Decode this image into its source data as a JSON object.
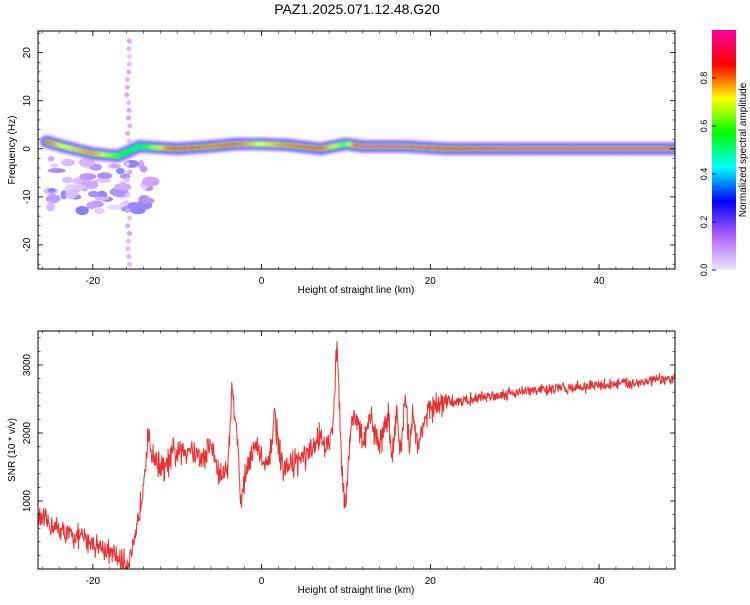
{
  "page_title": "PAZ1.2025.071.12.48.G20",
  "chart_data": [
    {
      "type": "heatmap",
      "title": "PAZ1.2025.071.12.48.G20",
      "xlabel": "Height of straight line (km)",
      "ylabel": "Frequency (Hz)",
      "xlim": [
        -26.5,
        49
      ],
      "ylim": [
        -25,
        24.5
      ],
      "x_ticks": [
        -20,
        0,
        20,
        40
      ],
      "y_ticks": [
        -20,
        -10,
        0,
        10,
        20
      ],
      "colorbar": {
        "label": "Normalized spectral amplitude",
        "range": [
          0.0,
          1.0
        ],
        "ticks": [
          0.0,
          0.2,
          0.4,
          0.6,
          0.8
        ],
        "colors": [
          "#e8e8ff",
          "#b060ff",
          "#0000ff",
          "#00ffff",
          "#00ff00",
          "#ffff00",
          "#ff0000",
          "#ff00a0"
        ]
      },
      "ridge": [
        {
          "x": -25.5,
          "freq": 1.5,
          "amp": 0.85
        },
        {
          "x": -23.5,
          "freq": 0.5,
          "amp": 0.7
        },
        {
          "x": -20,
          "freq": -1.0,
          "amp": 0.8
        },
        {
          "x": -17,
          "freq": -1.5,
          "amp": 0.6
        },
        {
          "x": -14.5,
          "freq": 0.5,
          "amp": 0.5
        },
        {
          "x": -10,
          "freq": 0.0,
          "amp": 0.9
        },
        {
          "x": -6,
          "freq": 0.5,
          "amp": 0.8
        },
        {
          "x": -3,
          "freq": 1.0,
          "amp": 0.85
        },
        {
          "x": 0,
          "freq": 1.0,
          "amp": 0.7
        },
        {
          "x": 3,
          "freq": 0.8,
          "amp": 0.8
        },
        {
          "x": 7,
          "freq": 0.0,
          "amp": 0.85
        },
        {
          "x": 10,
          "freq": 1.0,
          "amp": 0.6
        },
        {
          "x": 12,
          "freq": 0.5,
          "amp": 1.0
        },
        {
          "x": 17,
          "freq": 0.5,
          "amp": 1.0
        },
        {
          "x": 22,
          "freq": 0.0,
          "amp": 0.9
        },
        {
          "x": 30,
          "freq": 0.0,
          "amp": 1.0
        },
        {
          "x": 40,
          "freq": 0.0,
          "amp": 1.0
        },
        {
          "x": 49,
          "freq": 0.0,
          "amp": 1.0
        }
      ]
    },
    {
      "type": "line",
      "xlabel": "Height of straight line (km)",
      "ylabel": "SNR (10 * v/v)",
      "xlim": [
        -26.5,
        49
      ],
      "ylim": [
        0,
        3500
      ],
      "x_ticks": [
        -20,
        0,
        20,
        40
      ],
      "y_ticks": [
        1000,
        2000,
        3000
      ],
      "line_color": "#e83030",
      "series": [
        {
          "x": [
            -26.5,
            -25,
            -23,
            -21,
            -19,
            -17,
            -16,
            -15,
            -14.2,
            -13.5,
            -12.5,
            -11.5,
            -10.5,
            -9.5,
            -8.5,
            -7,
            -6,
            -5,
            -4,
            -3.5,
            -3,
            -2.5,
            -1.5,
            -0.5,
            0.5,
            1,
            1.5,
            2.5,
            3.5,
            4.5,
            6,
            7,
            7.5,
            8.3,
            9,
            9.5,
            10,
            10.5,
            11,
            12,
            13,
            14,
            15,
            15.5,
            16,
            16.5,
            17,
            17.5,
            18,
            18.5,
            19,
            20,
            22,
            25,
            30,
            35,
            40,
            45,
            49
          ],
          "y": [
            750,
            650,
            500,
            450,
            320,
            150,
            80,
            350,
            1100,
            1900,
            1600,
            1450,
            1700,
            1700,
            1800,
            1600,
            1850,
            1350,
            1500,
            2650,
            2200,
            1000,
            1650,
            1800,
            1450,
            1600,
            2300,
            1400,
            1550,
            1600,
            1700,
            2050,
            1700,
            1950,
            3350,
            1400,
            950,
            2000,
            2300,
            1850,
            2200,
            1800,
            2300,
            1600,
            2400,
            1650,
            2500,
            1800,
            2350,
            1700,
            2100,
            2350,
            2450,
            2500,
            2600,
            2650,
            2700,
            2750,
            2800
          ]
        }
      ]
    }
  ]
}
